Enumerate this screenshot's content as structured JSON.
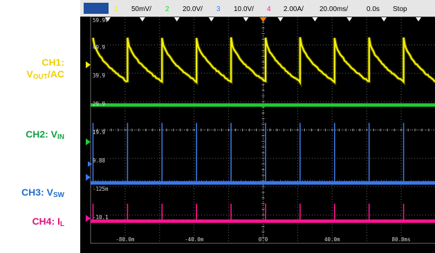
{
  "toolbar": {
    "ch1_scale": "50mV/",
    "ch2_scale": "20.0V/",
    "ch3_scale": "10.0V/",
    "ch4_scale": "2.00A/",
    "timebase": "20.00ms/",
    "delay": "0.0s",
    "status": "Stop",
    "ch_numbers": [
      "1",
      "2",
      "3",
      "4"
    ]
  },
  "side_labels": {
    "ch1_line1": "CH1:",
    "ch1_line2_main": "V",
    "ch1_line2_sub": "OUT",
    "ch1_line2_rest": "/AC",
    "ch2_main": "CH2: V",
    "ch2_sub": "IN",
    "ch3_main": "CH3: V",
    "ch3_sub": "SW",
    "ch4_main": "CH4: I",
    "ch4_sub": "L"
  },
  "colors": {
    "ch1": "#f5f000",
    "ch2": "#22cc33",
    "ch3": "#3a78e6",
    "ch4": "#ff1493",
    "label_ch1": "#f0d000",
    "label_ch2": "#10a040",
    "label_ch3": "#1e6ec8",
    "label_ch4": "#e0107a",
    "grid": "#6b6b6b",
    "screen_bg": "#000000",
    "toolbar_bg": "#e6e6e6"
  },
  "chart_data": {
    "type": "line",
    "x_unit": "ms",
    "xlim": [
      -100,
      100
    ],
    "x_tick_labels": [
      "-80.0m",
      "-40.0m",
      "0.0",
      "40.0m",
      "80.0ms"
    ],
    "x_tick_values": [
      -80,
      -40,
      0,
      40,
      80
    ],
    "y_tick_labels": [
      "59.9V",
      "49.9",
      "39.9",
      "29.9",
      "19.9",
      "9.88",
      "-125m",
      "-10.1"
    ],
    "series": [
      {
        "name": "CH1: VOUT/AC",
        "kind": "sawtooth",
        "x": [
          -98.6,
          -78.6,
          -58.6,
          -38.6,
          -18.6,
          1.4,
          21.4,
          41.4,
          61.4,
          81.4,
          100
        ],
        "peak_div": 0.75,
        "trough_div": 2.3
      },
      {
        "name": "CH2: VIN",
        "kind": "flat",
        "level_div": 3.12
      },
      {
        "name": "CH3: VSW",
        "kind": "pulse_train",
        "pulse_x": [
          -98.6,
          -78.6,
          -58.6,
          -38.6,
          -18.6,
          1.4,
          21.4,
          41.4,
          61.4,
          81.4
        ],
        "base_div": 5.87,
        "peak_div": 3.75
      },
      {
        "name": "CH4: IL",
        "kind": "pulse_train",
        "pulse_x": [
          -98.6,
          -78.6,
          -58.6,
          -38.6,
          -18.6,
          1.4,
          21.4,
          41.4,
          61.4,
          81.4
        ],
        "base_div": 7.22,
        "peak_div": 6.6
      }
    ],
    "grid": true
  }
}
